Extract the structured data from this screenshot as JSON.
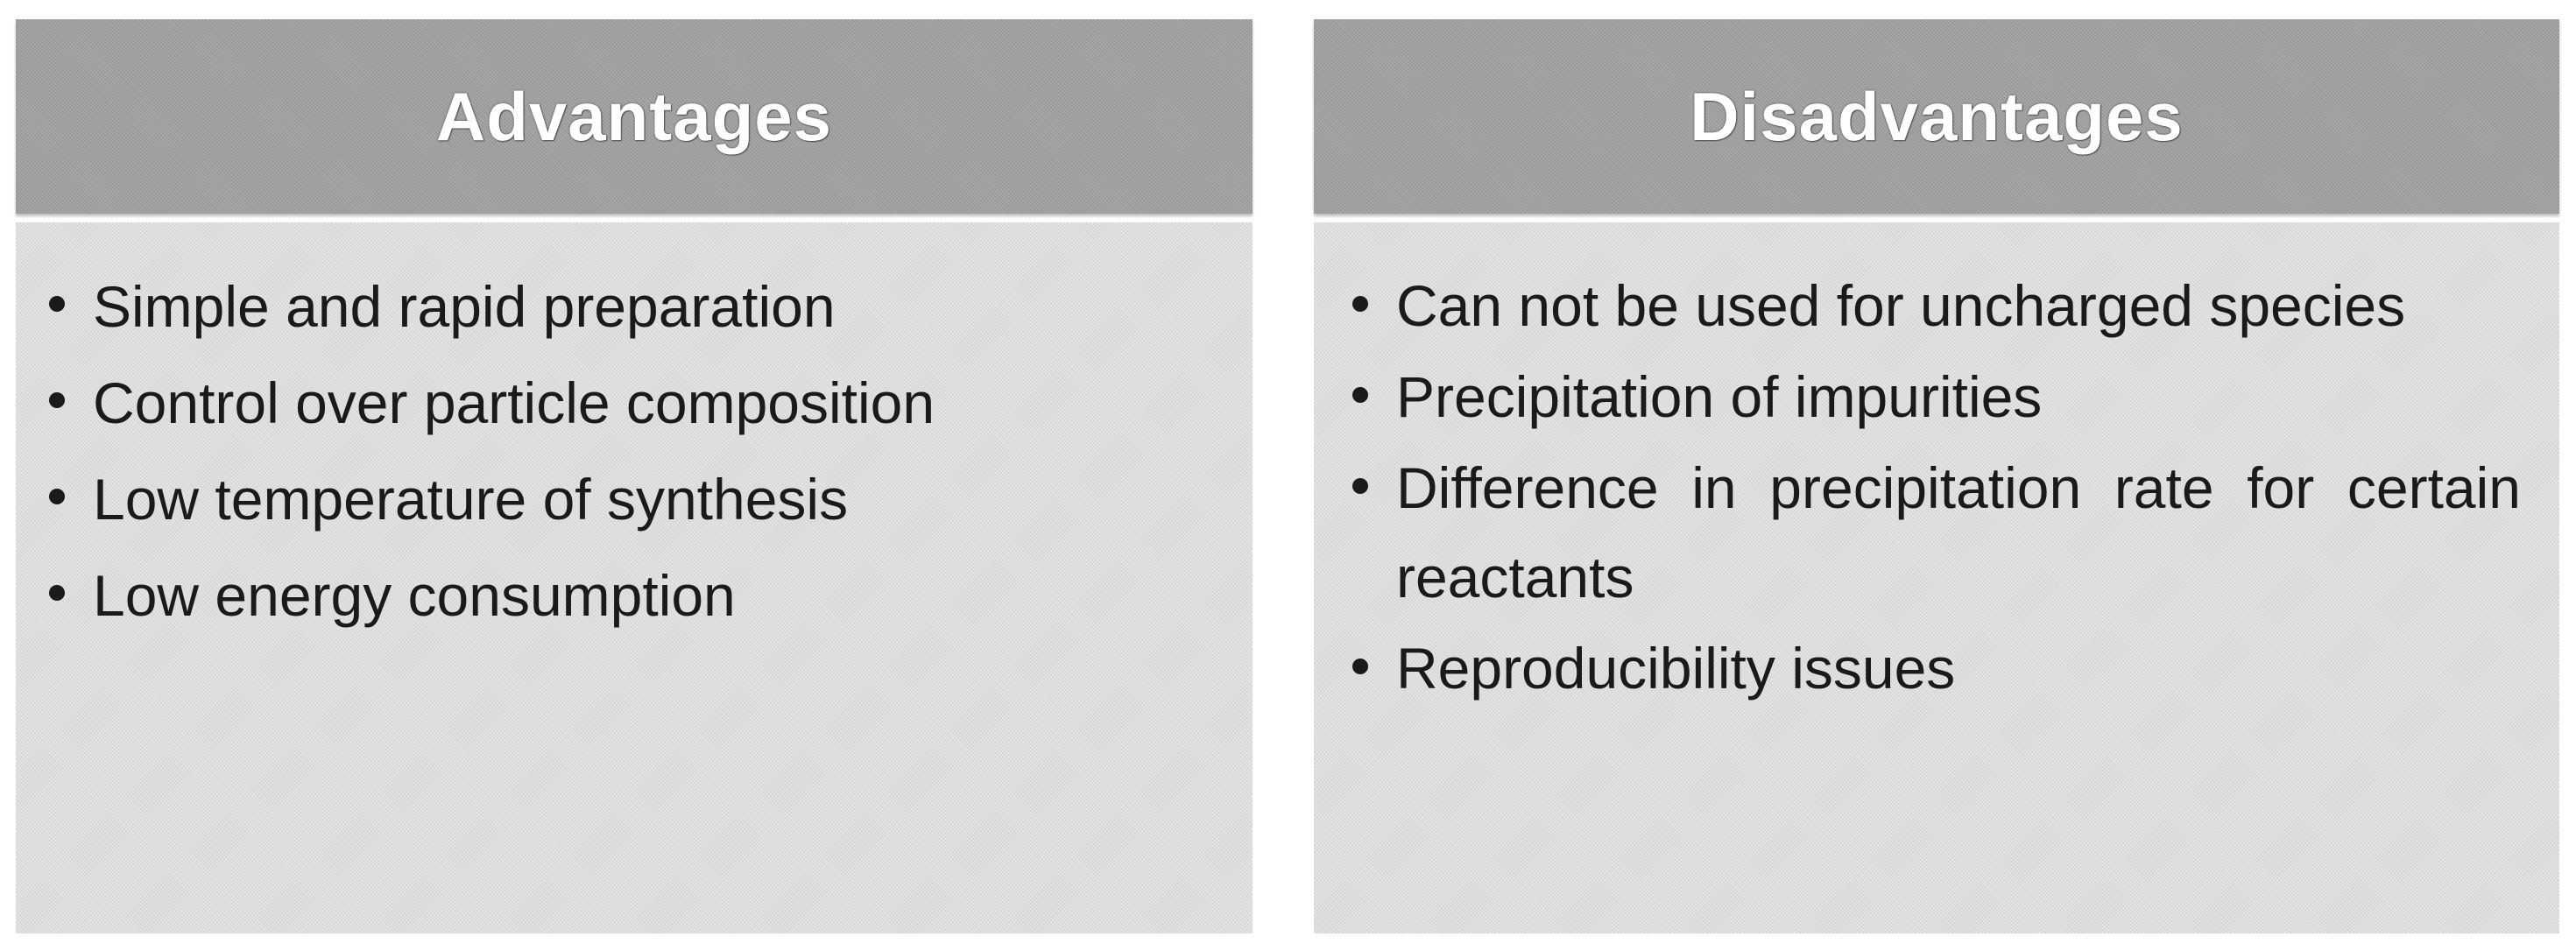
{
  "advantages": {
    "title": "Advantages",
    "items": [
      "Simple and rapid preparation",
      "Control over particle composition",
      "Low temperature of synthesis",
      "Low energy consumption"
    ]
  },
  "disadvantages": {
    "title": "Disadvantages",
    "items": [
      "Can not be used for uncharged species",
      "Precipitation of impurities",
      "Difference in precipitation rate for certain reactants",
      "Reproducibility issues"
    ]
  },
  "colors": {
    "header_fill": "#a2a2a2",
    "body_fill": "#dedede",
    "header_text": "#ffffff",
    "body_text": "#1a1a1a"
  }
}
